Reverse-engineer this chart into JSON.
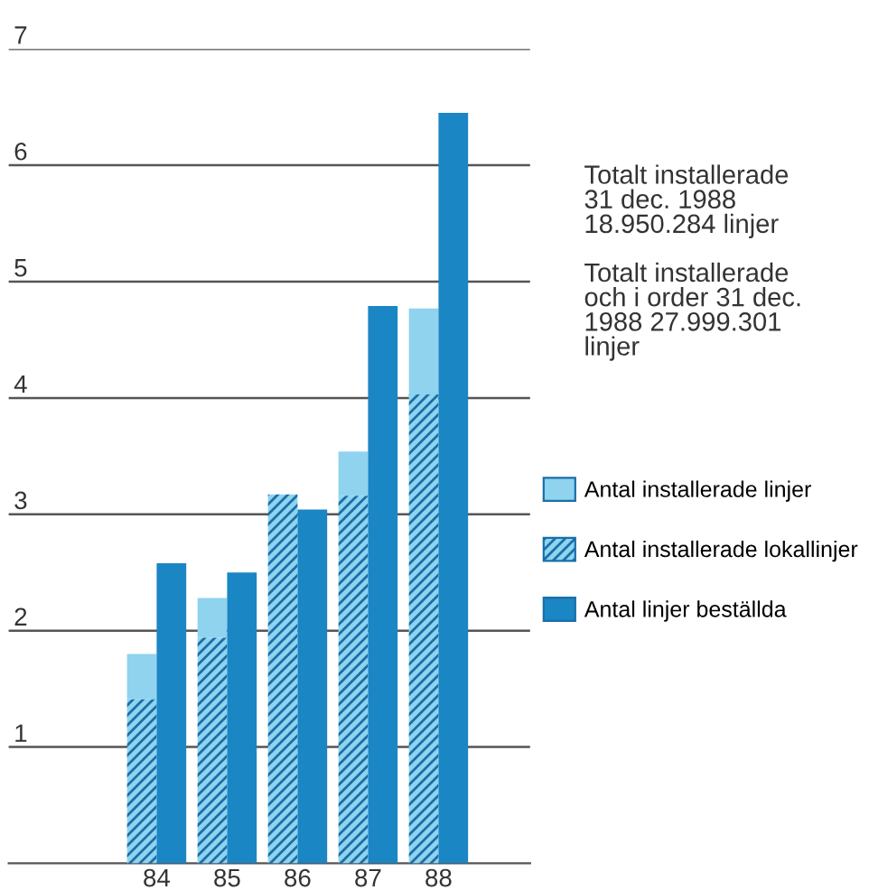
{
  "chart_data": {
    "type": "bar",
    "categories": [
      "84",
      "85",
      "86",
      "87",
      "88"
    ],
    "series": [
      {
        "name": "Antal installerade linjer",
        "color": "#8fd3ef",
        "values": [
          0.39,
          0.34,
          null,
          0.38,
          0.74
        ],
        "base": [
          1.41,
          1.94,
          null,
          3.16,
          4.03
        ]
      },
      {
        "name": "Antal installerade lokallinjer",
        "color": "#8fd3ef",
        "values": [
          1.41,
          1.94,
          3.17,
          3.16,
          4.03
        ]
      },
      {
        "name": "Antal linjer beställda",
        "color": "#1a86c4",
        "values": [
          2.58,
          2.5,
          3.04,
          4.79,
          6.45
        ]
      }
    ],
    "ylim": [
      0,
      7
    ],
    "yticks": [
      1,
      2,
      3,
      4,
      5,
      6,
      7
    ],
    "grid": "y",
    "legend": "right",
    "annotations": [
      "Totalt installerade\n31 dec. 1988\n18.950.284 linjer",
      "Totalt installerade\noch i order 31 dec.\n1988 27.999.301\nlinjer"
    ]
  }
}
